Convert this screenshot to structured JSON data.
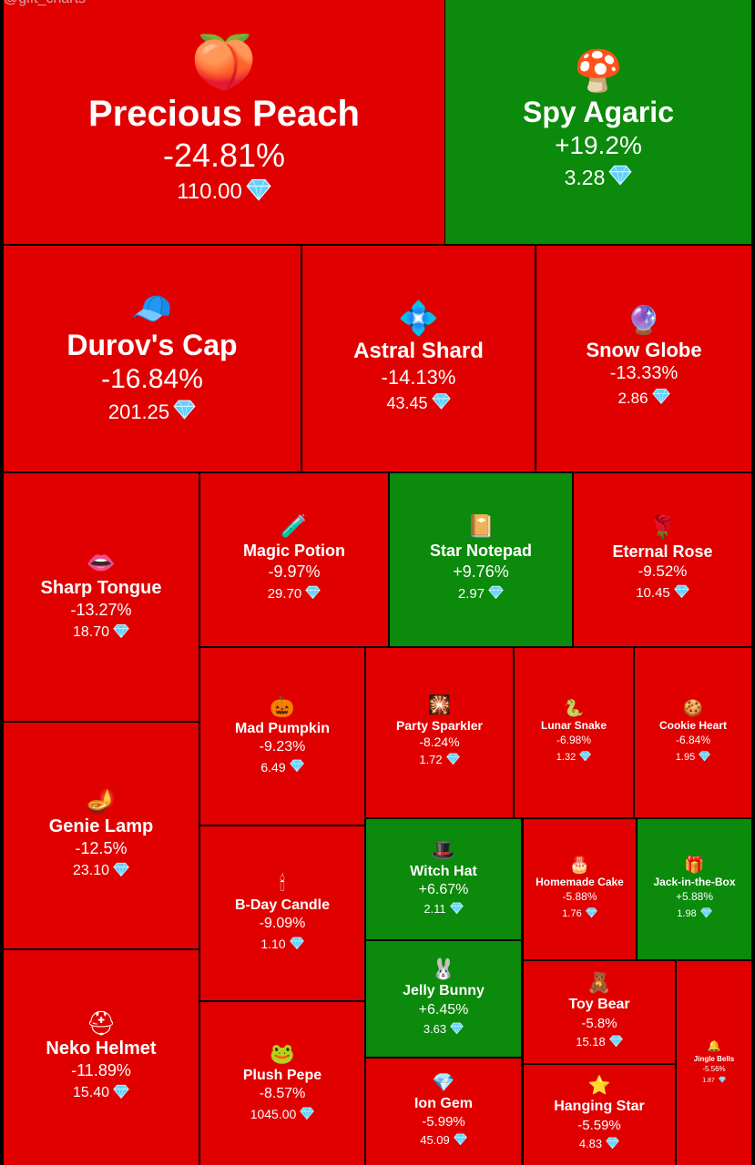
{
  "watermark": "@gift_charts",
  "colors": {
    "negative": "#e00000",
    "positive": "#0b8a0b",
    "border": "#000000",
    "gem": "#5fd0ff"
  },
  "chart_data": {
    "type": "treemap",
    "title": "",
    "items": [
      {
        "name": "Precious Peach",
        "change": "-24.81%",
        "price": "110.00",
        "icon": "peach-icon",
        "direction": "down"
      },
      {
        "name": "Spy Agaric",
        "change": "+19.2%",
        "price": "3.28",
        "icon": "mushroom-icon",
        "direction": "up"
      },
      {
        "name": "Durov's Cap",
        "change": "-16.84%",
        "price": "201.25",
        "icon": "cap-icon",
        "direction": "down"
      },
      {
        "name": "Astral Shard",
        "change": "-14.13%",
        "price": "43.45",
        "icon": "crystal-icon",
        "direction": "down"
      },
      {
        "name": "Snow Globe",
        "change": "-13.33%",
        "price": "2.86",
        "icon": "snow-globe-icon",
        "direction": "down"
      },
      {
        "name": "Sharp Tongue",
        "change": "-13.27%",
        "price": "18.70",
        "icon": "lips-icon",
        "direction": "down"
      },
      {
        "name": "Magic Potion",
        "change": "-9.97%",
        "price": "29.70",
        "icon": "potion-icon",
        "direction": "down"
      },
      {
        "name": "Star Notepad",
        "change": "+9.76%",
        "price": "2.97",
        "icon": "notebook-icon",
        "direction": "up"
      },
      {
        "name": "Eternal Rose",
        "change": "-9.52%",
        "price": "10.45",
        "icon": "rose-icon",
        "direction": "down"
      },
      {
        "name": "Mad Pumpkin",
        "change": "-9.23%",
        "price": "6.49",
        "icon": "pumpkin-icon",
        "direction": "down"
      },
      {
        "name": "Party Sparkler",
        "change": "-8.24%",
        "price": "1.72",
        "icon": "sparkler-icon",
        "direction": "down"
      },
      {
        "name": "Lunar Snake",
        "change": "-6.98%",
        "price": "1.32",
        "icon": "snake-icon",
        "direction": "down"
      },
      {
        "name": "Cookie Heart",
        "change": "-6.84%",
        "price": "1.95",
        "icon": "cookie-icon",
        "direction": "down"
      },
      {
        "name": "Genie Lamp",
        "change": "-12.5%",
        "price": "23.10",
        "icon": "lamp-icon",
        "direction": "down"
      },
      {
        "name": "B-Day Candle",
        "change": "-9.09%",
        "price": "1.10",
        "icon": "candle-icon",
        "direction": "down"
      },
      {
        "name": "Witch Hat",
        "change": "+6.67%",
        "price": "2.11",
        "icon": "witch-hat-icon",
        "direction": "up"
      },
      {
        "name": "Homemade Cake",
        "change": "-5.88%",
        "price": "1.76",
        "icon": "cake-icon",
        "direction": "down"
      },
      {
        "name": "Jack-in-the-Box",
        "change": "+5.88%",
        "price": "1.98",
        "icon": "jack-box-icon",
        "direction": "up"
      },
      {
        "name": "Jelly Bunny",
        "change": "+6.45%",
        "price": "3.63",
        "icon": "bunny-icon",
        "direction": "up"
      },
      {
        "name": "Toy Bear",
        "change": "-5.8%",
        "price": "15.18",
        "icon": "bear-icon",
        "direction": "down"
      },
      {
        "name": "Neko Helmet",
        "change": "-11.89%",
        "price": "15.40",
        "icon": "helmet-icon",
        "direction": "down"
      },
      {
        "name": "Plush Pepe",
        "change": "-8.57%",
        "price": "1045.00",
        "icon": "frog-icon",
        "direction": "down"
      },
      {
        "name": "Ion Gem",
        "change": "-5.99%",
        "price": "45.09",
        "icon": "gem-icon",
        "direction": "down"
      },
      {
        "name": "Hanging Star",
        "change": "-5.59%",
        "price": "4.83",
        "icon": "star-icon",
        "direction": "down"
      },
      {
        "name": "Jingle Bells",
        "change": "-5.56%",
        "price": "1.87",
        "icon": "bells-icon",
        "direction": "down"
      }
    ]
  }
}
